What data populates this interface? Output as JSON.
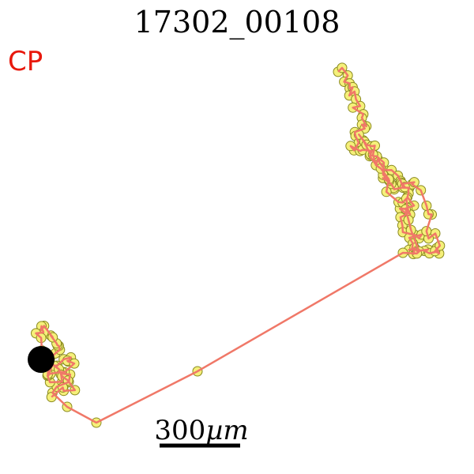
{
  "title": "17302_00108",
  "condition_label": "CP",
  "scale_bar": {
    "value": "300",
    "unit_html": "µm"
  },
  "colors": {
    "track_line": "#f07868",
    "marker_fill": "#f5f07a",
    "marker_stroke": "#8a8a20",
    "start_blob": "#000000",
    "label": "#e8180c"
  }
}
